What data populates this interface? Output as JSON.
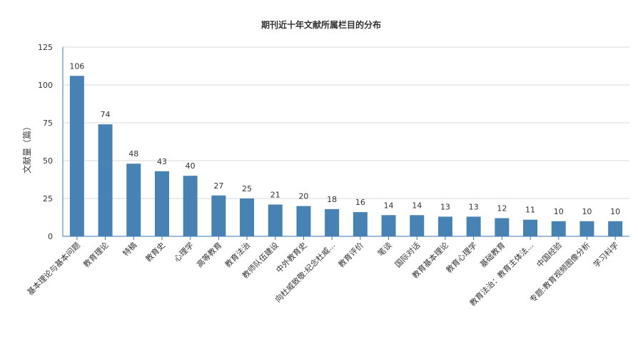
{
  "chart_data": {
    "type": "bar",
    "title": "期刊近十年文献所属栏目的分布",
    "xlabel": "",
    "ylabel": "文献量（篇）",
    "ylim": [
      0,
      125
    ],
    "yticks": [
      0,
      25,
      50,
      75,
      100,
      125
    ],
    "grid": true,
    "legend": "none",
    "bar_color": "#4682b4",
    "categories": [
      "基本理论与基本问题",
      "教育理论",
      "特稿",
      "教育史",
      "心理学",
      "高等教育",
      "教育法治",
      "教师队伍建设",
      "中外教育史",
      "向杜威致敬:纪念杜威...",
      "教育评价",
      "笔谈",
      "国际对话",
      "教育基本理论",
      "教育心理学",
      "基础教育",
      "教育法治：教育主体法...",
      "中国经验",
      "专题:教育视频图像分析",
      "学习科学"
    ],
    "values": [
      106,
      74,
      48,
      43,
      40,
      27,
      25,
      21,
      20,
      18,
      16,
      14,
      14,
      13,
      13,
      12,
      11,
      10,
      10,
      10
    ]
  }
}
